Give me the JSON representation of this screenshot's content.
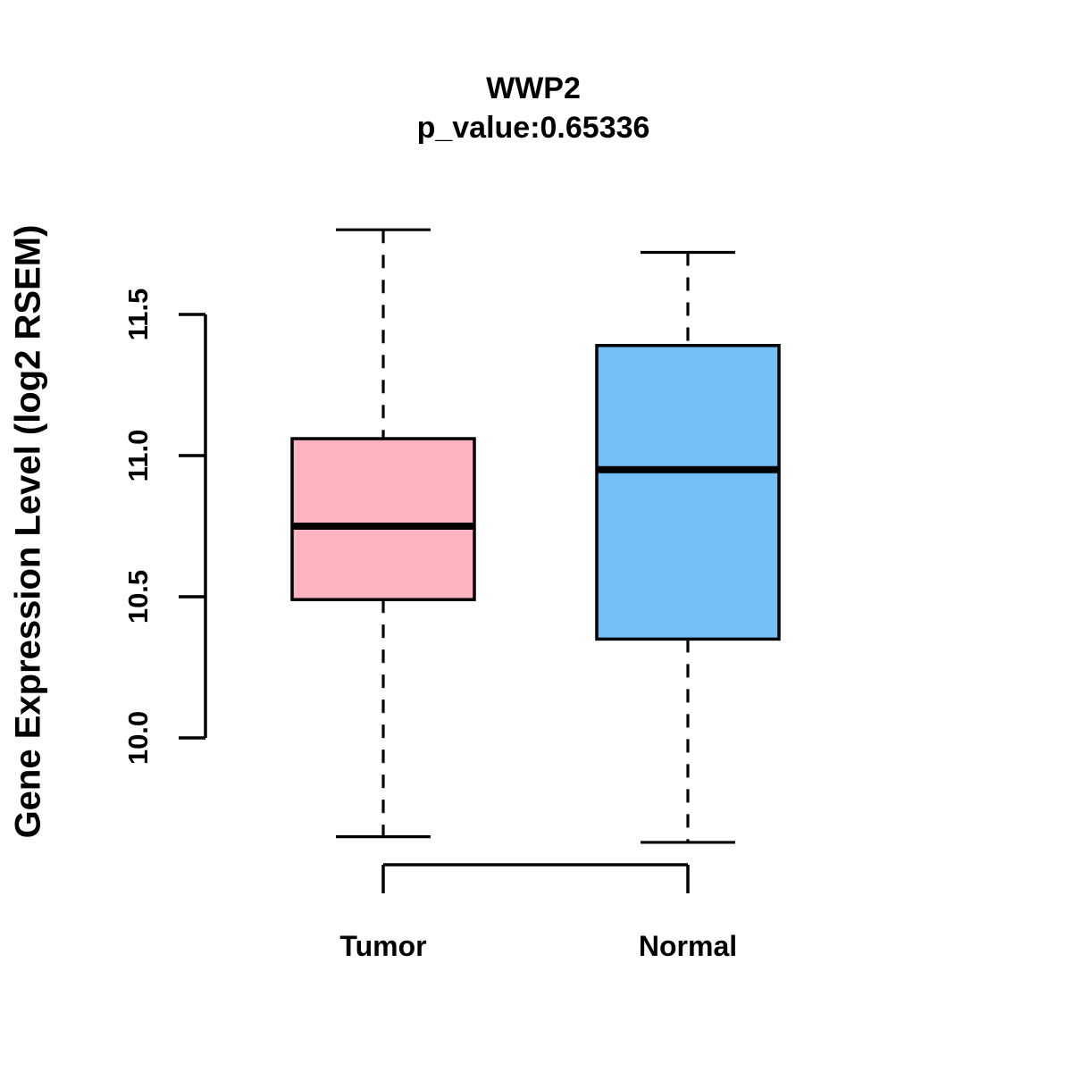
{
  "title": "WWP2",
  "subtitle": "p_value:0.65336",
  "ylabel": "Gene Expression Level (log2 RSEM)",
  "chart_data": {
    "type": "boxplot",
    "title": "WWP2",
    "subtitle": "p_value:0.65336",
    "xlabel": "",
    "ylabel": "Gene Expression Level (log2 RSEM)",
    "categories": [
      "Tumor",
      "Normal"
    ],
    "series": [
      {
        "name": "Tumor",
        "color": "#FFB3C1",
        "whisker_low": 9.65,
        "q1": 10.49,
        "median": 10.75,
        "q3": 11.06,
        "whisker_high": 11.8
      },
      {
        "name": "Normal",
        "color": "#74BFF7",
        "whisker_low": 9.63,
        "q1": 10.35,
        "median": 10.95,
        "q3": 11.39,
        "whisker_high": 11.72
      }
    ],
    "yticks": [
      {
        "label": "10.0",
        "value": 10.0
      },
      {
        "label": "10.5",
        "value": 10.5
      },
      {
        "label": "11.0",
        "value": 11.0
      },
      {
        "label": "11.5",
        "value": 11.5
      }
    ],
    "ylim": [
      9.5,
      11.9
    ],
    "grid": false,
    "legend": null,
    "whisker_line_style": "dashed",
    "box_border_color": "#000000",
    "median_color": "#000000"
  }
}
